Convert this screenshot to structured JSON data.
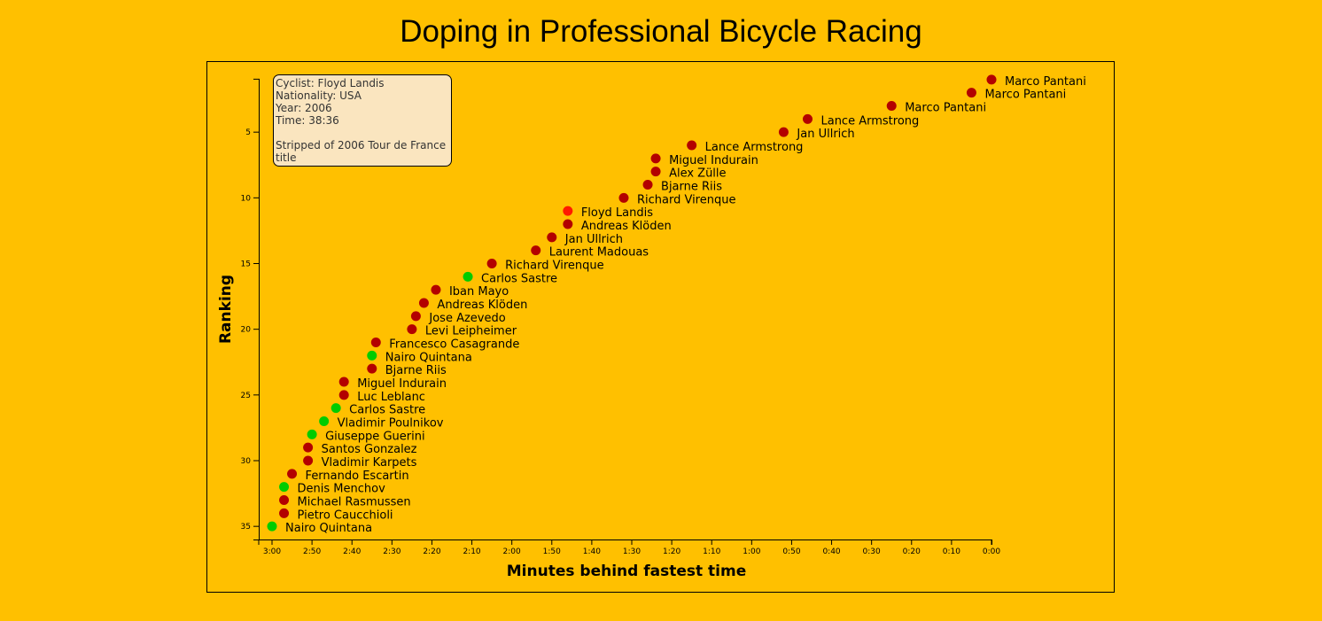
{
  "title": "Doping in Professional Bicycle Racing",
  "colors": {
    "background": "#FFC000",
    "doping": "#B30000",
    "clean": "#00CC00",
    "highlight": "#FF1A00"
  },
  "tooltip": {
    "cyclist_label": "Cyclist: Floyd Landis",
    "nationality_label": "Nationality: USA",
    "year_label": "Year: 2006",
    "time_label": "Time: 38:36",
    "note": "Stripped of 2006 Tour de France title"
  },
  "chart_data": {
    "type": "scatter",
    "title": "Doping in Professional Bicycle Racing",
    "xlabel": "Minutes behind fastest time",
    "ylabel": "Ranking",
    "x_unit": "seconds behind fastest time",
    "xlim": [
      180,
      0
    ],
    "ylim": [
      0,
      36
    ],
    "x_ticks": [
      "3:00",
      "2:50",
      "2:40",
      "2:30",
      "2:20",
      "2:10",
      "2:00",
      "1:50",
      "1:40",
      "1:30",
      "1:20",
      "1:10",
      "1:00",
      "0:50",
      "0:40",
      "0:30",
      "0:20",
      "0:10",
      "0:00"
    ],
    "y_ticks": [
      "5",
      "10",
      "15",
      "20",
      "25",
      "30",
      "35"
    ],
    "points": [
      {
        "rank": 1,
        "behind": 0,
        "name": "Marco Pantani",
        "doping": true
      },
      {
        "rank": 2,
        "behind": 5,
        "name": "Marco Pantani",
        "doping": true
      },
      {
        "rank": 3,
        "behind": 25,
        "name": "Marco Pantani",
        "doping": true
      },
      {
        "rank": 4,
        "behind": 46,
        "name": "Lance Armstrong",
        "doping": true
      },
      {
        "rank": 5,
        "behind": 52,
        "name": "Jan Ullrich",
        "doping": true
      },
      {
        "rank": 6,
        "behind": 75,
        "name": "Lance Armstrong",
        "doping": true
      },
      {
        "rank": 7,
        "behind": 84,
        "name": "Miguel Indurain",
        "doping": true
      },
      {
        "rank": 8,
        "behind": 84,
        "name": "Alex Zülle",
        "doping": true
      },
      {
        "rank": 9,
        "behind": 86,
        "name": "Bjarne Riis",
        "doping": true
      },
      {
        "rank": 10,
        "behind": 92,
        "name": "Richard Virenque",
        "doping": true
      },
      {
        "rank": 11,
        "behind": 106,
        "name": "Floyd Landis",
        "doping": true,
        "highlight": true
      },
      {
        "rank": 12,
        "behind": 106,
        "name": "Andreas Klöden",
        "doping": true
      },
      {
        "rank": 13,
        "behind": 110,
        "name": "Jan Ullrich",
        "doping": true
      },
      {
        "rank": 14,
        "behind": 114,
        "name": "Laurent Madouas",
        "doping": true
      },
      {
        "rank": 15,
        "behind": 125,
        "name": "Richard Virenque",
        "doping": true
      },
      {
        "rank": 16,
        "behind": 131,
        "name": "Carlos Sastre",
        "doping": false
      },
      {
        "rank": 17,
        "behind": 139,
        "name": "Iban Mayo",
        "doping": true
      },
      {
        "rank": 18,
        "behind": 142,
        "name": "Andreas Klöden",
        "doping": true
      },
      {
        "rank": 19,
        "behind": 144,
        "name": "Jose Azevedo",
        "doping": true
      },
      {
        "rank": 20,
        "behind": 145,
        "name": "Levi Leipheimer",
        "doping": true
      },
      {
        "rank": 21,
        "behind": 154,
        "name": "Francesco Casagrande",
        "doping": true
      },
      {
        "rank": 22,
        "behind": 155,
        "name": "Nairo Quintana",
        "doping": false
      },
      {
        "rank": 23,
        "behind": 155,
        "name": "Bjarne Riis",
        "doping": true
      },
      {
        "rank": 24,
        "behind": 162,
        "name": "Miguel Indurain",
        "doping": true
      },
      {
        "rank": 25,
        "behind": 162,
        "name": "Luc Leblanc",
        "doping": true
      },
      {
        "rank": 26,
        "behind": 164,
        "name": "Carlos Sastre",
        "doping": false
      },
      {
        "rank": 27,
        "behind": 167,
        "name": "Vladimir Poulnikov",
        "doping": false
      },
      {
        "rank": 28,
        "behind": 170,
        "name": "Giuseppe Guerini",
        "doping": false
      },
      {
        "rank": 29,
        "behind": 171,
        "name": "Santos Gonzalez",
        "doping": true
      },
      {
        "rank": 30,
        "behind": 171,
        "name": "Vladimir Karpets",
        "doping": true
      },
      {
        "rank": 31,
        "behind": 175,
        "name": "Fernando Escartin",
        "doping": true
      },
      {
        "rank": 32,
        "behind": 177,
        "name": "Denis Menchov",
        "doping": false
      },
      {
        "rank": 33,
        "behind": 177,
        "name": "Michael Rasmussen",
        "doping": true
      },
      {
        "rank": 34,
        "behind": 177,
        "name": "Pietro Caucchioli",
        "doping": true
      },
      {
        "rank": 35,
        "behind": 180,
        "name": "Nairo Quintana",
        "doping": false
      }
    ]
  }
}
